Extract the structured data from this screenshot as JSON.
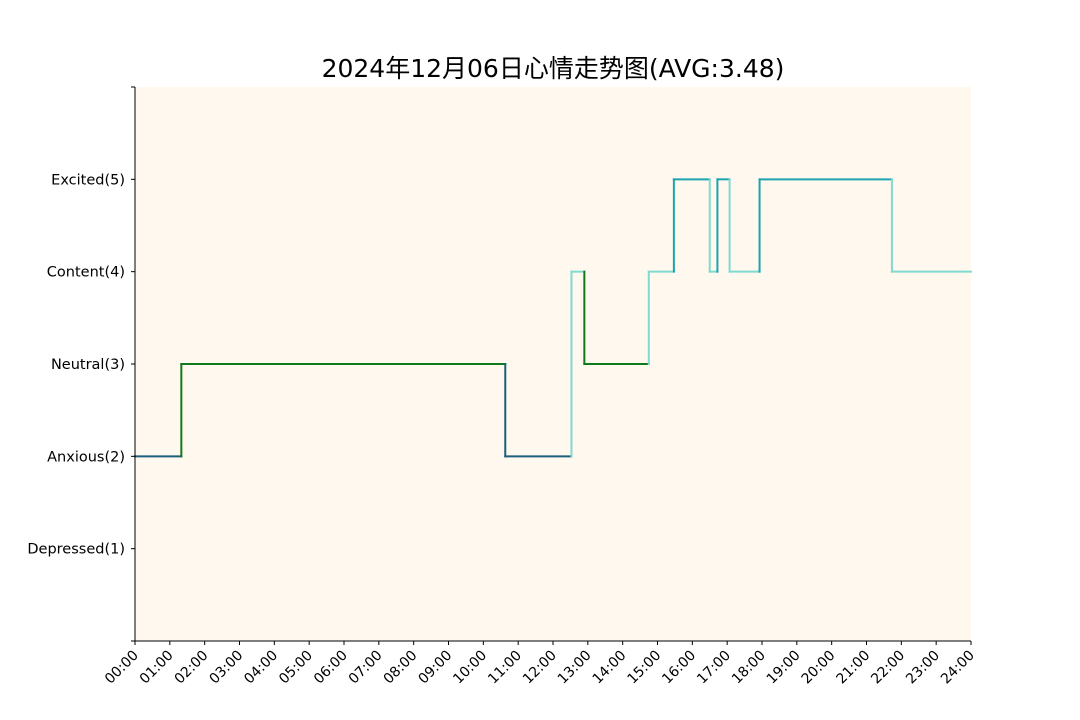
{
  "chart_data": {
    "type": "line",
    "step": "post",
    "title": "2024年12月06日心情走势图(AVG:3.48)",
    "xlabel": "",
    "ylabel": "",
    "xlim": [
      0,
      24
    ],
    "ylim": [
      0,
      6
    ],
    "x_ticks": [
      "00:00",
      "01:00",
      "02:00",
      "03:00",
      "04:00",
      "05:00",
      "06:00",
      "07:00",
      "08:00",
      "09:00",
      "10:00",
      "11:00",
      "12:00",
      "13:00",
      "14:00",
      "15:00",
      "16:00",
      "17:00",
      "18:00",
      "19:00",
      "20:00",
      "21:00",
      "22:00",
      "23:00",
      "24:00"
    ],
    "y_ticks": [
      {
        "value": 1,
        "label": "Depressed(1)"
      },
      {
        "value": 2,
        "label": "Anxious(2)"
      },
      {
        "value": 3,
        "label": "Neutral(3)"
      },
      {
        "value": 4,
        "label": "Content(4)"
      },
      {
        "value": 5,
        "label": "Excited(5)"
      }
    ],
    "grid": false,
    "background_color": "#fff8ee",
    "level_colors": {
      "2": "#1b5f7e",
      "3": "#0f7a1a",
      "4": "#7fdad0",
      "5": "#1ca3b0"
    },
    "segments": [
      {
        "start": 0.0,
        "end": 1.33,
        "value": 2
      },
      {
        "start": 1.33,
        "end": 10.63,
        "value": 3
      },
      {
        "start": 10.63,
        "end": 12.53,
        "value": 2
      },
      {
        "start": 12.53,
        "end": 12.9,
        "value": 4
      },
      {
        "start": 12.9,
        "end": 14.75,
        "value": 3
      },
      {
        "start": 14.75,
        "end": 15.47,
        "value": 4
      },
      {
        "start": 15.47,
        "end": 16.5,
        "value": 5
      },
      {
        "start": 16.5,
        "end": 16.72,
        "value": 4
      },
      {
        "start": 16.72,
        "end": 17.07,
        "value": 5
      },
      {
        "start": 17.07,
        "end": 17.93,
        "value": 4
      },
      {
        "start": 17.93,
        "end": 21.73,
        "value": 5
      },
      {
        "start": 21.73,
        "end": 24.0,
        "value": 4
      }
    ]
  }
}
